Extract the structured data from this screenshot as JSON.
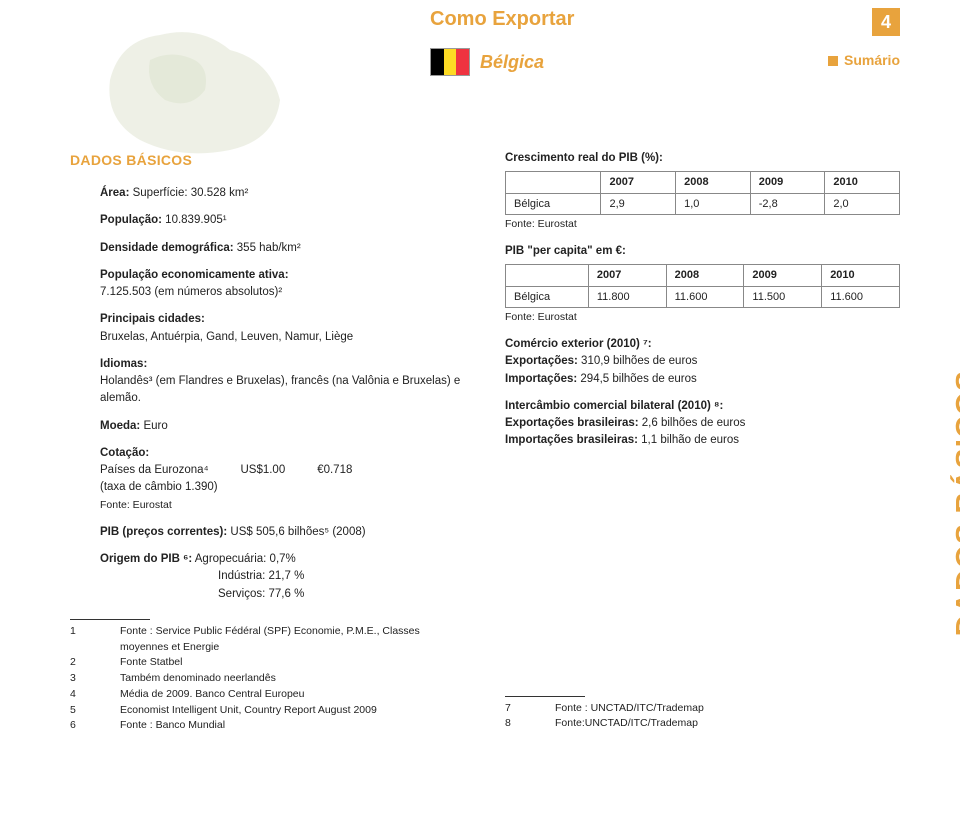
{
  "header": {
    "title": "Como Exportar",
    "page_number": "4",
    "country": "Bélgica",
    "summary_link": "Sumário",
    "flag_colors": [
      "#000000",
      "#fdda24",
      "#ef3340"
    ]
  },
  "side_label": "DADOS BÁSICOS",
  "left": {
    "heading": "DADOS BÁSICOS",
    "area_label": "Área:",
    "area_value": " Superfície: 30.528 km²",
    "pop_label": "População:",
    "pop_value": " 10.839.905¹",
    "density_label": "Densidade demográfica:",
    "density_value": " 355 hab/km²",
    "pop_active_label": "População economicamente ativa:",
    "pop_active_value": "7.125.503 (em números absolutos)²",
    "cities_label": "Principais cidades:",
    "cities_value": "Bruxelas, Antuérpia, Gand, Leuven, Namur, Liège",
    "lang_label": "Idiomas:",
    "lang_value": "Holandês³ (em Flandres e Bruxelas), francês (na Valônia e Bruxelas) e alemão.",
    "currency_label": "Moeda:",
    "currency_value": " Euro",
    "quote_label": "Cotação:",
    "quote_line1": "Países da Eurozona⁴",
    "quote_usd": "US$1.00",
    "quote_eur": "€0.718",
    "quote_line2": "(taxa de câmbio 1.390)",
    "quote_source": "Fonte: Eurostat",
    "pib_current_label": "PIB (preços correntes):",
    "pib_current_value": " US$ 505,6 bilhões⁵  (2008)",
    "pib_origin_label": "Origem do PIB ⁶:",
    "pib_origin_1": " Agropecuária: 0,7%",
    "pib_origin_2": "Indústria: 21,7 %",
    "pib_origin_3": "Serviços: 77,6 %",
    "footnotes": [
      {
        "n": "1",
        "t": "Fonte : Service Public Fédéral (SPF) Economie, P.M.E., Classes moyennes et Energie"
      },
      {
        "n": "2",
        "t": "Fonte Statbel"
      },
      {
        "n": "3",
        "t": "Também denominado neerlandês"
      },
      {
        "n": "4",
        "t": "Média de 2009. Banco Central Europeu"
      },
      {
        "n": "5",
        "t": "Economist Intelligent Unit, Country Report  August 2009"
      },
      {
        "n": "6",
        "t": "Fonte : Banco Mundial"
      }
    ]
  },
  "right": {
    "pib_growth_label": "Crescimento real do PIB (%):",
    "pib_growth_table": {
      "headers": [
        "",
        "2007",
        "2008",
        "2009",
        "2010"
      ],
      "row_label": "Bélgica",
      "row": [
        "2,9",
        "1,0",
        "-2,8",
        "2,0"
      ]
    },
    "source": "Fonte: Eurostat",
    "pib_capita_label": "PIB \"per capita\" em €:",
    "pib_capita_table": {
      "headers": [
        "",
        "2007",
        "2008",
        "2009",
        "2010"
      ],
      "row_label": "Bélgica",
      "row": [
        "11.800",
        "11.600",
        "11.500",
        "11.600"
      ]
    },
    "trade_label": "Comércio exterior (2010) ⁷:",
    "exports_label": "Exportações:",
    "exports_value": " 310,9 bilhões de euros",
    "imports_label": "Importações:",
    "imports_value": " 294,5 bilhões de euros",
    "bilateral_label": "Intercâmbio comercial bilateral (2010) ⁸:",
    "br_exports_label": "Exportações brasileiras:",
    "br_exports_value": " 2,6 bilhões de euros",
    "br_imports_label": "Importações brasileiras:",
    "br_imports_value": " 1,1 bilhão de euros",
    "footnotes": [
      {
        "n": "7",
        "t": "Fonte : UNCTAD/ITC/Trademap"
      },
      {
        "n": "8",
        "t": "Fonte:UNCTAD/ITC/Trademap"
      }
    ]
  }
}
